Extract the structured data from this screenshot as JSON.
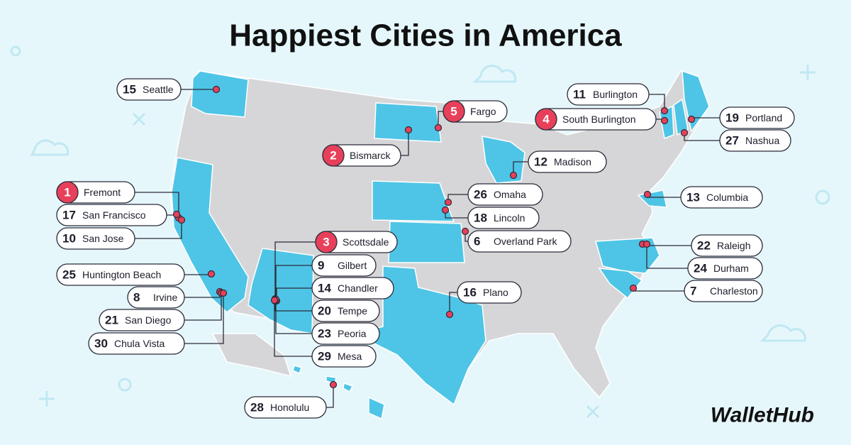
{
  "title": "Happiest Cities in America",
  "brand": "WalletHub",
  "cities": [
    {
      "rank": 15,
      "name": "Seattle"
    },
    {
      "rank": 1,
      "name": "Fremont"
    },
    {
      "rank": 17,
      "name": "San Francisco"
    },
    {
      "rank": 10,
      "name": "San Jose"
    },
    {
      "rank": 25,
      "name": "Huntington Beach"
    },
    {
      "rank": 8,
      "name": "Irvine"
    },
    {
      "rank": 21,
      "name": "San Diego"
    },
    {
      "rank": 30,
      "name": "Chula Vista"
    },
    {
      "rank": 2,
      "name": "Bismarck"
    },
    {
      "rank": 5,
      "name": "Fargo"
    },
    {
      "rank": 3,
      "name": "Scottsdale"
    },
    {
      "rank": 9,
      "name": "Gilbert"
    },
    {
      "rank": 14,
      "name": "Chandler"
    },
    {
      "rank": 20,
      "name": "Tempe"
    },
    {
      "rank": 23,
      "name": "Peoria"
    },
    {
      "rank": 29,
      "name": "Mesa"
    },
    {
      "rank": 28,
      "name": "Honolulu"
    },
    {
      "rank": 16,
      "name": "Plano"
    },
    {
      "rank": 26,
      "name": "Omaha"
    },
    {
      "rank": 18,
      "name": "Lincoln"
    },
    {
      "rank": 6,
      "name": "Overland Park"
    },
    {
      "rank": 12,
      "name": "Madison"
    },
    {
      "rank": 11,
      "name": "Burlington"
    },
    {
      "rank": 4,
      "name": "South Burlington"
    },
    {
      "rank": 19,
      "name": "Portland"
    },
    {
      "rank": 27,
      "name": "Nashua"
    },
    {
      "rank": 13,
      "name": "Columbia"
    },
    {
      "rank": 22,
      "name": "Raleigh"
    },
    {
      "rank": 24,
      "name": "Durham"
    },
    {
      "rank": 7,
      "name": "Charleston"
    }
  ]
}
